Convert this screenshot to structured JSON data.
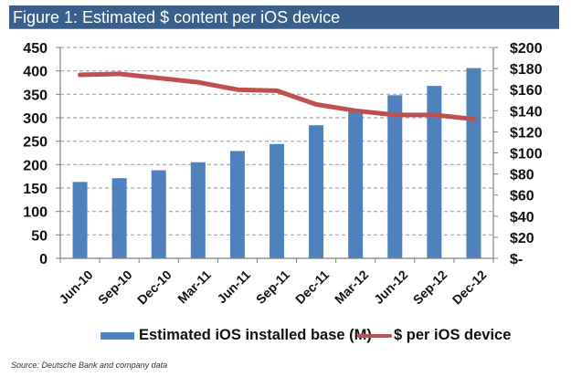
{
  "header": {
    "title": "Figure 1: Estimated $ content per iOS device"
  },
  "colors": {
    "title_bar": "#3a5f8a",
    "bar": "#4f81bd",
    "line": "#c0504d",
    "grid": "#a6a6a6",
    "axis": "#808080"
  },
  "chart_data": {
    "type": "bar",
    "title": "Figure 1: Estimated $ content per iOS device",
    "xlabel": "",
    "ylabel": "",
    "categories": [
      "Jun-10",
      "Sep-10",
      "Dec-10",
      "Mar-11",
      "Jun-11",
      "Sep-11",
      "Dec-11",
      "Mar-12",
      "Jun-12",
      "Sep-12",
      "Dec-12"
    ],
    "series": [
      {
        "name": "Estimated iOS installed base (M)",
        "type": "bar",
        "axis": "left",
        "values": [
          163,
          171,
          188,
          205,
          229,
          244,
          284,
          316,
          348,
          368,
          406
        ]
      },
      {
        "name": "$ per iOS device",
        "type": "line",
        "axis": "right",
        "values": [
          174,
          175,
          171,
          167,
          160,
          159,
          146,
          140,
          136,
          136,
          132
        ]
      }
    ],
    "left_axis": {
      "ylim": [
        0,
        450
      ],
      "ticks": [
        0,
        50,
        100,
        150,
        200,
        250,
        300,
        350,
        400,
        450
      ],
      "tick_labels": [
        "0",
        "50",
        "100",
        "150",
        "200",
        "250",
        "300",
        "350",
        "400",
        "450"
      ]
    },
    "right_axis": {
      "ylim": [
        0,
        200
      ],
      "ticks": [
        0,
        20,
        40,
        60,
        80,
        100,
        120,
        140,
        160,
        180,
        200
      ],
      "tick_labels": [
        "$-",
        "$20",
        "$40",
        "$60",
        "$80",
        "$100",
        "$120",
        "$140",
        "$160",
        "$180",
        "$200"
      ]
    },
    "grid": true,
    "grid_style": "dashed horizontal",
    "legend": {
      "placement": "bottom",
      "entries": [
        "Estimated iOS installed base (M)",
        "$ per iOS device"
      ]
    }
  },
  "footer": {
    "source": "Source: Deutsche Bank and company data"
  }
}
